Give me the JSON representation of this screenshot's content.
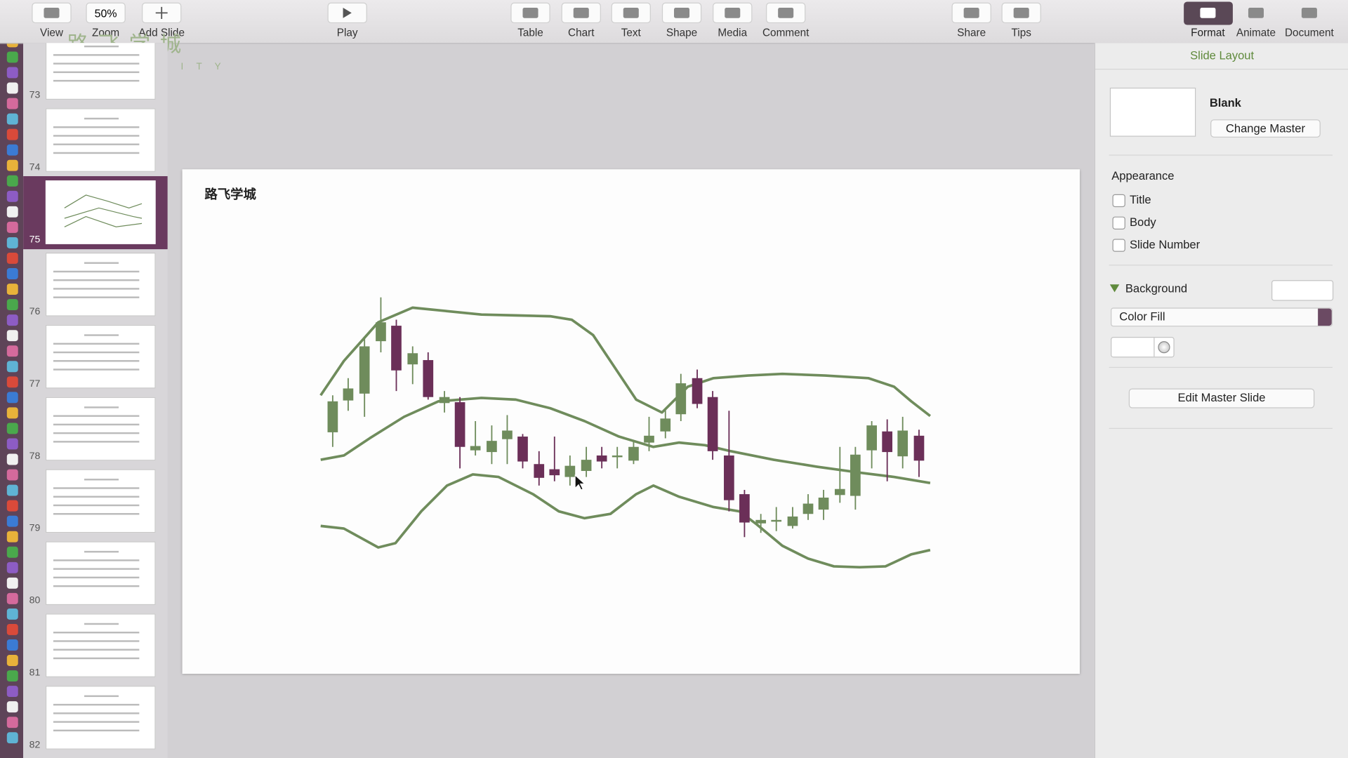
{
  "toolbar": {
    "items": [
      "View",
      "Zoom",
      "Add Slide",
      "Play",
      "Table",
      "Chart",
      "Text",
      "Shape",
      "Media",
      "Comment",
      "Share",
      "Tips",
      "Format",
      "Animate",
      "Document"
    ],
    "zoom_value": "50%"
  },
  "watermark": {
    "title": "路 飞 学 城",
    "subtitle": "L U F F Y C I T Y"
  },
  "navigator": {
    "slide_numbers": [
      "73",
      "74",
      "75",
      "76",
      "77",
      "78",
      "79",
      "80",
      "81",
      "82"
    ],
    "selected": "75"
  },
  "slide": {
    "title": "路飞学城"
  },
  "inspector": {
    "header": "Slide Layout",
    "layout_name": "Blank",
    "change_master": "Change Master",
    "appearance": "Appearance",
    "checkboxes": [
      "Title",
      "Body",
      "Slide Number"
    ],
    "background": "Background",
    "fill_type": "Color Fill",
    "edit_master": "Edit Master Slide"
  }
}
